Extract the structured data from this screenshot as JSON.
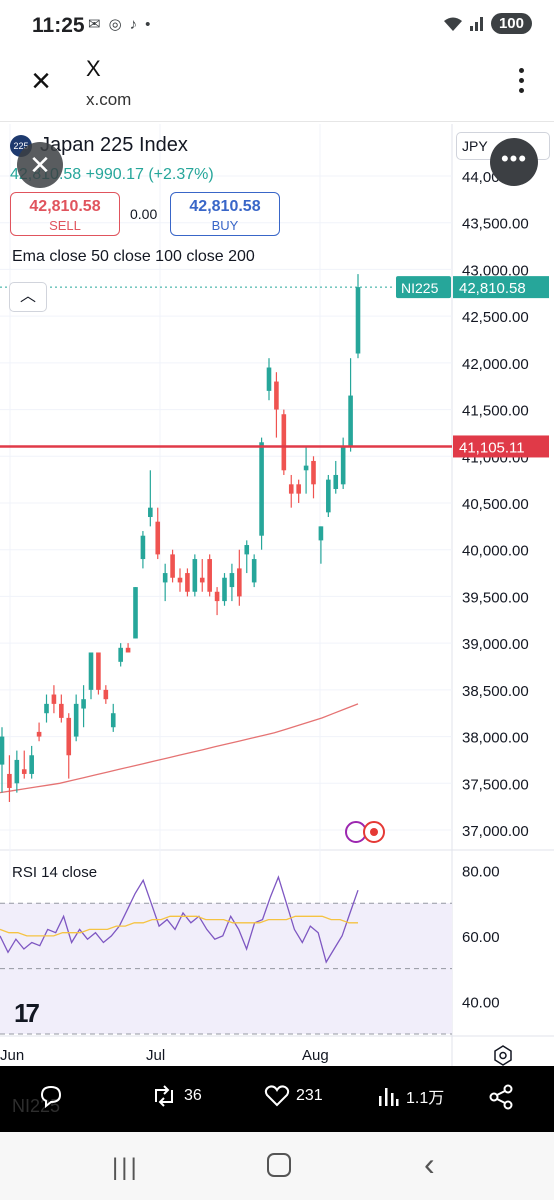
{
  "status_bar": {
    "time": "11:25",
    "left_icons": [
      "mail-icon",
      "chrome-icon",
      "tiktok-icon",
      "dot-icon"
    ],
    "battery": "100"
  },
  "app_header": {
    "title": "X",
    "url": "x.com"
  },
  "chart": {
    "symbol": "Japan 225 Index",
    "price_line": "42,810.58 +990.17 (+2.37%)",
    "sell_price": "42,810.58",
    "sell_label": "SELL",
    "buy_price": "42,810.58",
    "buy_label": "BUY",
    "spread": "0.00",
    "indicator_label": "Ema close 50 close 100 close 200",
    "currency": "JPY",
    "rsi_label": "RSI 14 close",
    "colors": {
      "up": "#26a69a",
      "down": "#ef5350",
      "ema": "#e57373",
      "level": "#e03a48",
      "rsi": "#7e57c2",
      "rsi_ma": "#f5c342"
    }
  },
  "chart_data": {
    "type": "candlestick",
    "title": "Japan 225 Index",
    "y_axis_ticks": [
      "44,000.00",
      "43,500.00",
      "43,000.00",
      "42,500.00",
      "42,000.00",
      "41,500.00",
      "41,000.00",
      "40,500.00",
      "40,000.00",
      "39,500.00",
      "39,000.00",
      "38,500.00",
      "38,000.00",
      "37,500.00",
      "37,000.00"
    ],
    "x_axis_ticks": [
      "Jun",
      "Jul",
      "Aug"
    ],
    "ylim": [
      36900,
      44150
    ],
    "candles": [
      {
        "o": 37700,
        "h": 38100,
        "l": 37400,
        "c": 38000
      },
      {
        "o": 37600,
        "h": 37800,
        "l": 37300,
        "c": 37450
      },
      {
        "o": 37500,
        "h": 37850,
        "l": 37400,
        "c": 37750
      },
      {
        "o": 37650,
        "h": 37850,
        "l": 37550,
        "c": 37600
      },
      {
        "o": 37600,
        "h": 37900,
        "l": 37550,
        "c": 37800
      },
      {
        "o": 38050,
        "h": 38150,
        "l": 37950,
        "c": 38000
      },
      {
        "o": 38250,
        "h": 38450,
        "l": 38150,
        "c": 38350
      },
      {
        "o": 38450,
        "h": 38550,
        "l": 38250,
        "c": 38350
      },
      {
        "o": 38350,
        "h": 38450,
        "l": 38150,
        "c": 38200
      },
      {
        "o": 38200,
        "h": 38250,
        "l": 37550,
        "c": 37800
      },
      {
        "o": 38000,
        "h": 38450,
        "l": 37950,
        "c": 38350
      },
      {
        "o": 38300,
        "h": 38550,
        "l": 38100,
        "c": 38400
      },
      {
        "o": 38500,
        "h": 38900,
        "l": 38400,
        "c": 38900
      },
      {
        "o": 38900,
        "h": 38900,
        "l": 38450,
        "c": 38500
      },
      {
        "o": 38500,
        "h": 38550,
        "l": 38350,
        "c": 38400
      },
      {
        "o": 38100,
        "h": 38350,
        "l": 38050,
        "c": 38250
      },
      {
        "o": 38800,
        "h": 39000,
        "l": 38750,
        "c": 38950
      },
      {
        "o": 38950,
        "h": 39000,
        "l": 38900,
        "c": 38900
      },
      {
        "o": 39050,
        "h": 39600,
        "l": 39050,
        "c": 39600
      },
      {
        "o": 39900,
        "h": 40200,
        "l": 39800,
        "c": 40150
      },
      {
        "o": 40350,
        "h": 40850,
        "l": 40250,
        "c": 40450
      },
      {
        "o": 40300,
        "h": 40450,
        "l": 39900,
        "c": 39950
      },
      {
        "o": 39650,
        "h": 39850,
        "l": 39450,
        "c": 39750
      },
      {
        "o": 39950,
        "h": 40000,
        "l": 39650,
        "c": 39700
      },
      {
        "o": 39700,
        "h": 39800,
        "l": 39550,
        "c": 39650
      },
      {
        "o": 39750,
        "h": 39800,
        "l": 39500,
        "c": 39550
      },
      {
        "o": 39550,
        "h": 39950,
        "l": 39500,
        "c": 39900
      },
      {
        "o": 39700,
        "h": 39900,
        "l": 39550,
        "c": 39650
      },
      {
        "o": 39900,
        "h": 39950,
        "l": 39500,
        "c": 39550
      },
      {
        "o": 39550,
        "h": 39600,
        "l": 39300,
        "c": 39450
      },
      {
        "o": 39450,
        "h": 39750,
        "l": 39400,
        "c": 39700
      },
      {
        "o": 39600,
        "h": 39850,
        "l": 39450,
        "c": 39750
      },
      {
        "o": 39800,
        "h": 40000,
        "l": 39400,
        "c": 39500
      },
      {
        "o": 39950,
        "h": 40100,
        "l": 39750,
        "c": 40050
      },
      {
        "o": 39650,
        "h": 39950,
        "l": 39600,
        "c": 39900
      },
      {
        "o": 40150,
        "h": 41200,
        "l": 40000,
        "c": 41150
      },
      {
        "o": 41700,
        "h": 42050,
        "l": 41600,
        "c": 41950
      },
      {
        "o": 41800,
        "h": 41900,
        "l": 41200,
        "c": 41500
      },
      {
        "o": 41450,
        "h": 41500,
        "l": 40800,
        "c": 40850
      },
      {
        "o": 40700,
        "h": 40800,
        "l": 40450,
        "c": 40600
      },
      {
        "o": 40700,
        "h": 40750,
        "l": 40500,
        "c": 40600
      },
      {
        "o": 40850,
        "h": 41100,
        "l": 40600,
        "c": 40900
      },
      {
        "o": 40950,
        "h": 41000,
        "l": 40550,
        "c": 40700
      },
      {
        "o": 40100,
        "h": 40250,
        "l": 39850,
        "c": 40250
      },
      {
        "o": 40400,
        "h": 40800,
        "l": 40350,
        "c": 40750
      },
      {
        "o": 40650,
        "h": 40950,
        "l": 40600,
        "c": 40800
      },
      {
        "o": 40700,
        "h": 41200,
        "l": 40650,
        "c": 41100
      },
      {
        "o": 41100,
        "h": 42050,
        "l": 41050,
        "c": 41650
      },
      {
        "o": 42100,
        "h": 42950,
        "l": 42050,
        "c": 42810.58
      }
    ],
    "ema": [
      37400,
      37420,
      37440,
      37460,
      37480,
      37500,
      37530,
      37560,
      37590,
      37620,
      37650,
      37680,
      37710,
      37740,
      37770,
      37800,
      37830,
      37860,
      37890,
      37920,
      37950,
      37980,
      38010,
      38040,
      38080,
      38120,
      38160,
      38200,
      38250,
      38300,
      38350
    ],
    "last_price_label": {
      "symbol": "NI225",
      "price": "42,810.58"
    },
    "level_line": {
      "value": 41105.11,
      "label": "41,105.11"
    },
    "rsi": {
      "y_axis_ticks": [
        "80.00",
        "60.00",
        "40.00"
      ],
      "ylim": [
        30,
        82
      ],
      "bands": [
        70,
        50,
        30
      ],
      "values": [
        60,
        55,
        59,
        56,
        58,
        57,
        62,
        61,
        66,
        58,
        62,
        59,
        61,
        58,
        60,
        63,
        68,
        73,
        77,
        70,
        63,
        65,
        62,
        67,
        64,
        66,
        62,
        59,
        60,
        66,
        62,
        56,
        64,
        65,
        72,
        78,
        70,
        62,
        58,
        63,
        61,
        52,
        56,
        60,
        67,
        74
      ],
      "ma": [
        62,
        61,
        61,
        60,
        60,
        60,
        60,
        61,
        61,
        61,
        62,
        62,
        62,
        63,
        63,
        64,
        64,
        65,
        65,
        66,
        66,
        66,
        66,
        65,
        65,
        65,
        64,
        64,
        64,
        64,
        65,
        65,
        65,
        66,
        66,
        66,
        66,
        65,
        65,
        64,
        64
      ]
    }
  },
  "action_bar": {
    "retweets": "36",
    "likes": "231",
    "views": "1.1万",
    "ghost_text": "NI225"
  }
}
